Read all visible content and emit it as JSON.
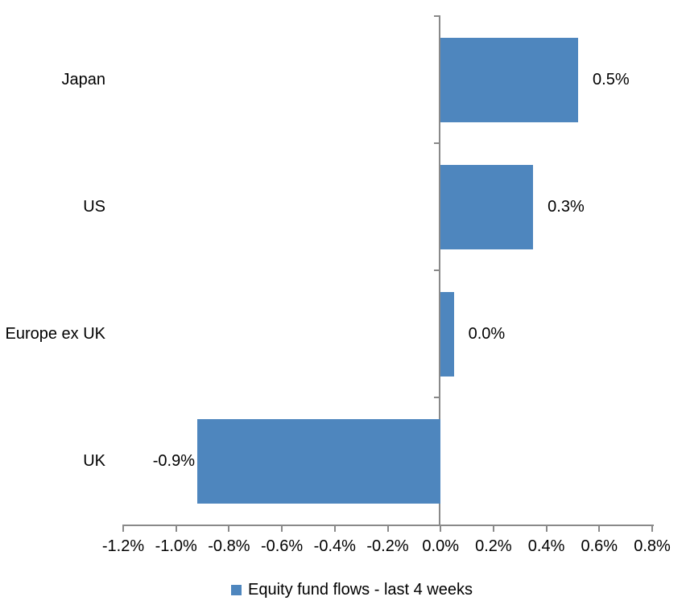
{
  "chart_data": {
    "type": "bar",
    "orientation": "horizontal",
    "categories": [
      "Japan",
      "US",
      "Europe ex UK",
      "UK"
    ],
    "values": [
      0.5,
      0.3,
      0.0,
      -0.9
    ],
    "value_labels": [
      "0.5%",
      "0.3%",
      "0.0%",
      "-0.9%"
    ],
    "bar_extents_pct": [
      0.52,
      0.35,
      0.05,
      -0.92
    ],
    "series": [
      {
        "name": "Equity fund flows - last 4 weeks",
        "values": [
          0.5,
          0.3,
          0.0,
          -0.9
        ]
      }
    ],
    "xlim": [
      -1.2,
      0.8
    ],
    "x_ticks": [
      -1.2,
      -1.0,
      -0.8,
      -0.6,
      -0.4,
      -0.2,
      0.0,
      0.2,
      0.4,
      0.6,
      0.8
    ],
    "x_tick_labels": [
      "-1.2%",
      "-1.0%",
      "-0.8%",
      "-0.6%",
      "-0.4%",
      "-0.2%",
      "0.0%",
      "0.2%",
      "0.4%",
      "0.6%",
      "0.8%"
    ],
    "grid": false,
    "legend_position": "bottom",
    "colors": {
      "bar": "#4E86BE",
      "axis": "#898989",
      "text": "#000000",
      "background": "#FFFFFF"
    }
  },
  "legend": {
    "label": "Equity fund flows - last 4 weeks",
    "swatch_color": "#4E86BE"
  }
}
